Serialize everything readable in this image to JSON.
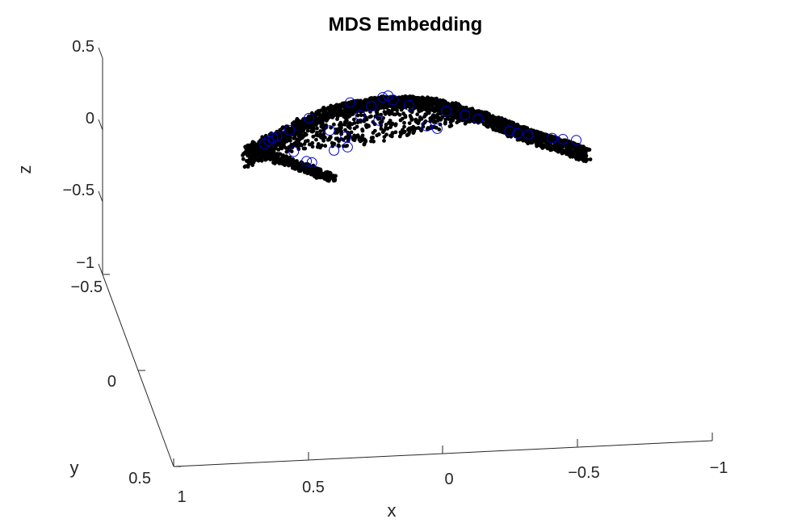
{
  "chart_data": {
    "type": "scatter",
    "title": "MDS Embedding",
    "xlabel": "x",
    "ylabel": "y",
    "zlabel": "z",
    "xlim": [
      -1,
      1
    ],
    "ylim": [
      -0.5,
      0.5
    ],
    "zlim": [
      -1,
      0.5
    ],
    "x_ticks": [
      "1",
      "0.5",
      "0",
      "−0.5",
      "−1"
    ],
    "y_ticks": [
      "−0.5",
      "0",
      "0.5"
    ],
    "z_ticks": [
      "0.5",
      "0",
      "−0.5",
      "−1"
    ],
    "grid": false,
    "point_color": "#000000",
    "highlight_color": "#0000cc",
    "series": [
      {
        "points_count": 3000,
        "highlighted_points": [
          [
            0.66,
            -0.06
          ],
          [
            0.645,
            -0.04
          ],
          [
            0.63,
            -0.02
          ],
          [
            0.615,
            -0.01
          ],
          [
            0.57,
            0.03
          ],
          [
            0.35,
            0.21
          ],
          [
            0.27,
            0.18
          ],
          [
            0.23,
            0.24
          ],
          [
            0.21,
            0.25
          ],
          [
            0.19,
            0.22
          ],
          [
            0.13,
            0.18
          ],
          [
            0.5,
            0.11
          ],
          [
            0.42,
            0.02
          ],
          [
            0.36,
            -0.03
          ],
          [
            0.31,
            0.12
          ],
          [
            0.24,
            0.08
          ],
          [
            0.06,
            0.03
          ],
          [
            0.02,
            0.01
          ],
          [
            -0.01,
            0.13
          ],
          [
            -0.08,
            0.1
          ],
          [
            -0.13,
            0.07
          ],
          [
            -0.25,
            -0.02
          ],
          [
            -0.28,
            -0.04
          ],
          [
            -0.32,
            -0.05
          ],
          [
            -0.41,
            -0.08
          ],
          [
            -0.45,
            -0.09
          ],
          [
            -0.5,
            -0.1
          ],
          [
            0.5,
            -0.19
          ],
          [
            0.48,
            -0.2
          ],
          [
            0.55,
            -0.12
          ],
          [
            0.4,
            -0.12
          ],
          [
            0.35,
            -0.1
          ]
        ]
      }
    ]
  }
}
